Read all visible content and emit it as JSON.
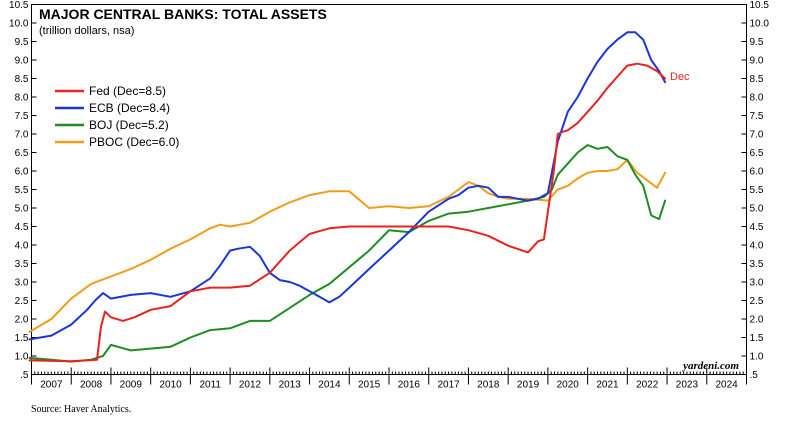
{
  "chart_data": {
    "type": "line",
    "title": "MAJOR CENTRAL BANKS: TOTAL ASSETS",
    "subtitle": "(trillion dollars, nsa)",
    "ylim": [
      0.5,
      10.5
    ],
    "yticks": [
      "10.5",
      "10.0",
      "9.5",
      "9.0",
      "8.5",
      "8.0",
      "7.5",
      "7.0",
      "6.5",
      "6.0",
      "5.5",
      "5.0",
      "4.5",
      "4.0",
      "3.5",
      "3.0",
      "2.5",
      "2.0",
      "1.5",
      "1.0",
      ".5"
    ],
    "xlim": [
      2007,
      2025
    ],
    "xticks": [
      "2007",
      "2008",
      "2009",
      "2010",
      "2011",
      "2012",
      "2013",
      "2014",
      "2015",
      "2016",
      "2017",
      "2018",
      "2019",
      "2020",
      "2021",
      "2022",
      "2023",
      "2024"
    ],
    "legend_position": "top-left",
    "grid": false,
    "series": [
      {
        "name": "Fed (Dec=8.5)",
        "color": "#e8231e",
        "x": [
          2006.95,
          2008.0,
          2008.65,
          2008.75,
          2008.85,
          2009.0,
          2009.3,
          2009.6,
          2010.0,
          2010.5,
          2011.0,
          2011.5,
          2012.0,
          2012.5,
          2013.0,
          2013.5,
          2014.0,
          2014.5,
          2015.0,
          2015.5,
          2016.0,
          2016.5,
          2017.0,
          2017.5,
          2018.0,
          2018.5,
          2019.0,
          2019.5,
          2019.75,
          2019.9,
          2020.15,
          2020.25,
          2020.35,
          2020.5,
          2020.75,
          2021.0,
          2021.25,
          2021.5,
          2021.75,
          2022.0,
          2022.25,
          2022.5,
          2022.75,
          2022.95
        ],
        "y": [
          0.88,
          0.86,
          0.9,
          1.8,
          2.2,
          2.05,
          1.95,
          2.05,
          2.25,
          2.35,
          2.75,
          2.85,
          2.85,
          2.9,
          3.25,
          3.85,
          4.3,
          4.45,
          4.5,
          4.5,
          4.5,
          4.5,
          4.5,
          4.5,
          4.4,
          4.25,
          3.98,
          3.8,
          4.1,
          4.15,
          6.0,
          7.0,
          7.05,
          7.1,
          7.3,
          7.6,
          7.9,
          8.25,
          8.55,
          8.85,
          8.9,
          8.85,
          8.7,
          8.5
        ]
      },
      {
        "name": "ECB (Dec=8.4)",
        "color": "#1a36d6",
        "x": [
          2006.95,
          2007.5,
          2008.0,
          2008.4,
          2008.6,
          2008.8,
          2009.0,
          2009.5,
          2010.0,
          2010.5,
          2011.0,
          2011.5,
          2011.75,
          2012.0,
          2012.2,
          2012.5,
          2012.75,
          2013.0,
          2013.25,
          2013.5,
          2013.75,
          2014.0,
          2014.25,
          2014.5,
          2014.75,
          2015.0,
          2015.5,
          2016.0,
          2016.5,
          2017.0,
          2017.5,
          2017.75,
          2018.0,
          2018.25,
          2018.5,
          2018.75,
          2019.0,
          2019.25,
          2019.5,
          2019.75,
          2020.0,
          2020.25,
          2020.5,
          2020.75,
          2021.0,
          2021.25,
          2021.5,
          2021.75,
          2022.0,
          2022.2,
          2022.4,
          2022.6,
          2022.8,
          2022.95
        ],
        "y": [
          1.45,
          1.55,
          1.85,
          2.25,
          2.5,
          2.7,
          2.55,
          2.65,
          2.7,
          2.6,
          2.75,
          3.1,
          3.45,
          3.85,
          3.9,
          3.95,
          3.7,
          3.25,
          3.05,
          3.0,
          2.9,
          2.75,
          2.6,
          2.45,
          2.6,
          2.85,
          3.35,
          3.85,
          4.35,
          4.9,
          5.25,
          5.35,
          5.55,
          5.6,
          5.55,
          5.3,
          5.3,
          5.25,
          5.2,
          5.25,
          5.4,
          6.8,
          7.6,
          8.0,
          8.5,
          8.95,
          9.3,
          9.55,
          9.75,
          9.75,
          9.55,
          9.0,
          8.7,
          8.4
        ]
      },
      {
        "name": "BOJ (Dec=5.2)",
        "color": "#1f8c23",
        "x": [
          2006.95,
          2007.5,
          2008.0,
          2008.5,
          2008.8,
          2009.0,
          2009.5,
          2010.0,
          2010.5,
          2011.0,
          2011.5,
          2012.0,
          2012.5,
          2013.0,
          2013.5,
          2014.0,
          2014.5,
          2015.0,
          2015.5,
          2016.0,
          2016.5,
          2017.0,
          2017.5,
          2018.0,
          2018.5,
          2019.0,
          2019.5,
          2019.9,
          2020.1,
          2020.25,
          2020.5,
          2020.75,
          2021.0,
          2021.25,
          2021.5,
          2021.75,
          2022.0,
          2022.2,
          2022.4,
          2022.6,
          2022.8,
          2022.95
        ],
        "y": [
          0.95,
          0.9,
          0.85,
          0.9,
          1.0,
          1.3,
          1.15,
          1.2,
          1.25,
          1.5,
          1.7,
          1.75,
          1.95,
          1.95,
          2.3,
          2.65,
          2.95,
          3.4,
          3.85,
          4.4,
          4.35,
          4.65,
          4.85,
          4.9,
          5.0,
          5.1,
          5.2,
          5.3,
          5.5,
          5.9,
          6.2,
          6.5,
          6.7,
          6.6,
          6.65,
          6.4,
          6.3,
          5.9,
          5.6,
          4.8,
          4.7,
          5.2
        ]
      },
      {
        "name": "PBOC (Dec=6.0)",
        "color": "#f39c1b",
        "x": [
          2006.95,
          2007.5,
          2008.0,
          2008.5,
          2009.0,
          2009.5,
          2010.0,
          2010.5,
          2011.0,
          2011.5,
          2011.75,
          2012.0,
          2012.5,
          2013.0,
          2013.5,
          2014.0,
          2014.5,
          2015.0,
          2015.5,
          2016.0,
          2016.5,
          2017.0,
          2017.5,
          2017.75,
          2018.0,
          2018.25,
          2018.5,
          2018.75,
          2019.0,
          2019.5,
          2020.0,
          2020.25,
          2020.5,
          2020.75,
          2021.0,
          2021.25,
          2021.5,
          2021.75,
          2022.0,
          2022.25,
          2022.5,
          2022.75,
          2022.95
        ],
        "y": [
          1.65,
          2.0,
          2.55,
          2.95,
          3.15,
          3.35,
          3.6,
          3.9,
          4.15,
          4.45,
          4.55,
          4.5,
          4.6,
          4.9,
          5.15,
          5.35,
          5.45,
          5.45,
          5.0,
          5.05,
          5.0,
          5.05,
          5.3,
          5.5,
          5.7,
          5.6,
          5.4,
          5.3,
          5.25,
          5.25,
          5.2,
          5.5,
          5.6,
          5.8,
          5.95,
          6.0,
          6.0,
          6.05,
          6.3,
          5.95,
          5.75,
          5.55,
          5.95
        ]
      }
    ],
    "annotations": [
      {
        "text": "Dec",
        "color": "#e8231e"
      }
    ]
  },
  "labels": {
    "watermark": "yardeni.com",
    "source": "Source: Haver Analytics."
  }
}
